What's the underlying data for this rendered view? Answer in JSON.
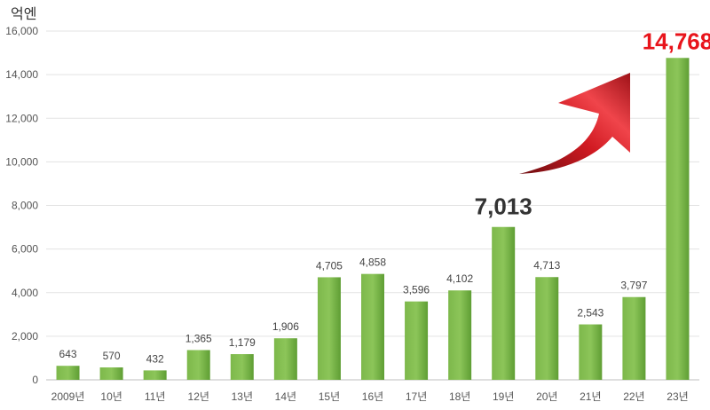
{
  "chart_data": {
    "type": "bar",
    "unit_label": "억엔",
    "categories": [
      "2009년",
      "10년",
      "11년",
      "12년",
      "13년",
      "14년",
      "15년",
      "16년",
      "17년",
      "18년",
      "19년",
      "20년",
      "21년",
      "22년",
      "23년"
    ],
    "values": [
      643,
      570,
      432,
      1365,
      1179,
      1906,
      4705,
      4858,
      3596,
      4102,
      7013,
      4713,
      2543,
      3797,
      14768
    ],
    "data_labels": [
      "643",
      "570",
      "432",
      "1,365",
      "1,179",
      "1,906",
      "4,705",
      "4,858",
      "3,596",
      "4,102",
      "7,013",
      "4,713",
      "2,543",
      "3,797",
      "14,768"
    ],
    "emphasized_labels": [
      {
        "category_index": 10,
        "text": "7,013",
        "style": "large-dark"
      },
      {
        "category_index": 14,
        "text": "14,768",
        "style": "large-red"
      }
    ],
    "ylim": [
      0,
      16000
    ],
    "yticks": [
      0,
      2000,
      4000,
      6000,
      8000,
      10000,
      12000,
      14000,
      16000
    ],
    "ytick_labels": [
      "0",
      "2,000",
      "4,000",
      "6,000",
      "8,000",
      "10,000",
      "12,000",
      "14,000",
      "16,000"
    ],
    "grid": true,
    "bar_color": "#6aaa3a",
    "highlight_color": "#e8141b",
    "annotation": "red-upward-arrow"
  }
}
